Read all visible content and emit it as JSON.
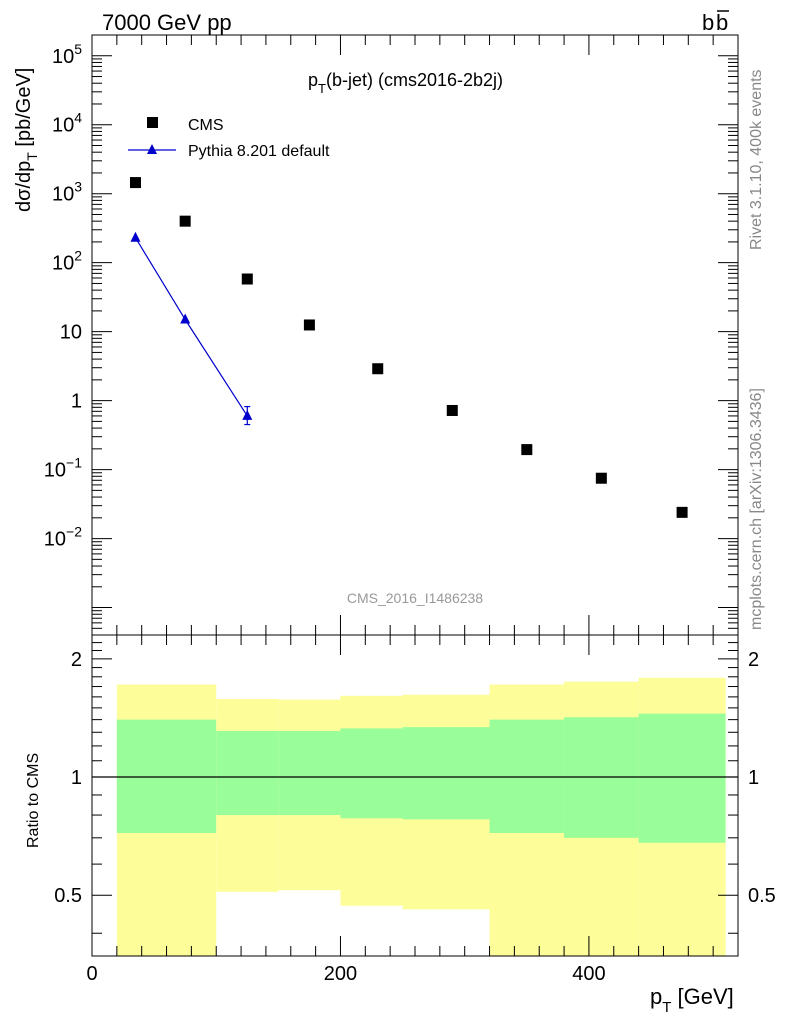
{
  "header": {
    "left": "7000 GeV pp",
    "right_b": "b",
    "right_bbar": "b"
  },
  "side_text": {
    "rivet": "Rivet 3.1.10,  400k events",
    "mcplots": "mcplots.cern.ch [arXiv:1306.3436]"
  },
  "chart_data": [
    {
      "type": "scatter",
      "title_main": "p",
      "title_sub": "T",
      "title_rest": "(b-jet) (cms2016-2b2j)",
      "ylabel_main": "dσ/dp",
      "ylabel_sub": "T",
      "ylabel_rest": " [pb/GeV]",
      "yscale": "log",
      "ylim": [
        0.0004,
        200000
      ],
      "xlim": [
        0,
        520
      ],
      "watermark": "CMS_2016_I1486238",
      "y_tick_labels": [
        {
          "v": 100000,
          "base": "10",
          "exp": "5"
        },
        {
          "v": 10000,
          "base": "10",
          "exp": "4"
        },
        {
          "v": 1000,
          "base": "10",
          "exp": "3"
        },
        {
          "v": 100,
          "base": "10",
          "exp": "2"
        },
        {
          "v": 10,
          "base": "10",
          "exp": ""
        },
        {
          "v": 1,
          "base": "1",
          "exp": ""
        },
        {
          "v": 0.1,
          "base": "10",
          "exp": "−1"
        },
        {
          "v": 0.01,
          "base": "10",
          "exp": "−2"
        }
      ],
      "legend": [
        {
          "name": "CMS",
          "marker": "square",
          "color": "#000000"
        },
        {
          "name": "Pythia 8.201 default",
          "marker": "triangle",
          "color": "#0000cc"
        }
      ],
      "series": [
        {
          "name": "CMS",
          "x": [
            35,
            75,
            125,
            175,
            230,
            290,
            350,
            410,
            475
          ],
          "y": [
            1450,
            400,
            58,
            12.5,
            2.9,
            0.72,
            0.195,
            0.075,
            0.024
          ]
        },
        {
          "name": "Pythia 8.201 default",
          "x": [
            35,
            75,
            125
          ],
          "y": [
            230,
            15,
            0.6
          ],
          "yerr_low": [
            0,
            0,
            0.15
          ],
          "yerr_high": [
            0,
            0,
            0.22
          ]
        }
      ]
    },
    {
      "type": "area",
      "ylabel": "Ratio to CMS",
      "xlabel_main": "p",
      "xlabel_sub": "T",
      "xlabel_rest": " [GeV]",
      "ylim": [
        0.35,
        2.3
      ],
      "xlim": [
        0,
        520
      ],
      "x_tick_labels": [
        0,
        200,
        400
      ],
      "y_tick_labels": [
        "0.5",
        "1",
        "2"
      ],
      "y_tick_values": [
        0.5,
        1,
        2
      ],
      "reference_line": 1,
      "bins": [
        {
          "x0": 20,
          "x1": 100,
          "yellow_lo": 0.35,
          "yellow_hi": 1.72,
          "green_lo": 0.72,
          "green_hi": 1.4
        },
        {
          "x0": 100,
          "x1": 150,
          "yellow_lo": 0.51,
          "yellow_hi": 1.58,
          "green_lo": 0.8,
          "green_hi": 1.31
        },
        {
          "x0": 150,
          "x1": 200,
          "yellow_lo": 0.515,
          "yellow_hi": 1.575,
          "green_lo": 0.8,
          "green_hi": 1.31
        },
        {
          "x0": 200,
          "x1": 250,
          "yellow_lo": 0.47,
          "yellow_hi": 1.61,
          "green_lo": 0.785,
          "green_hi": 1.33
        },
        {
          "x0": 250,
          "x1": 320,
          "yellow_lo": 0.46,
          "yellow_hi": 1.62,
          "green_lo": 0.78,
          "green_hi": 1.34
        },
        {
          "x0": 320,
          "x1": 380,
          "yellow_lo": 0.35,
          "yellow_hi": 1.72,
          "green_lo": 0.72,
          "green_hi": 1.4
        },
        {
          "x0": 380,
          "x1": 440,
          "yellow_lo": 0.35,
          "yellow_hi": 1.75,
          "green_lo": 0.7,
          "green_hi": 1.42
        },
        {
          "x0": 440,
          "x1": 510,
          "yellow_lo": 0.35,
          "yellow_hi": 1.79,
          "green_lo": 0.68,
          "green_hi": 1.45
        }
      ],
      "colors": {
        "yellow": "#fdfd99",
        "green": "#99fd99"
      }
    }
  ]
}
